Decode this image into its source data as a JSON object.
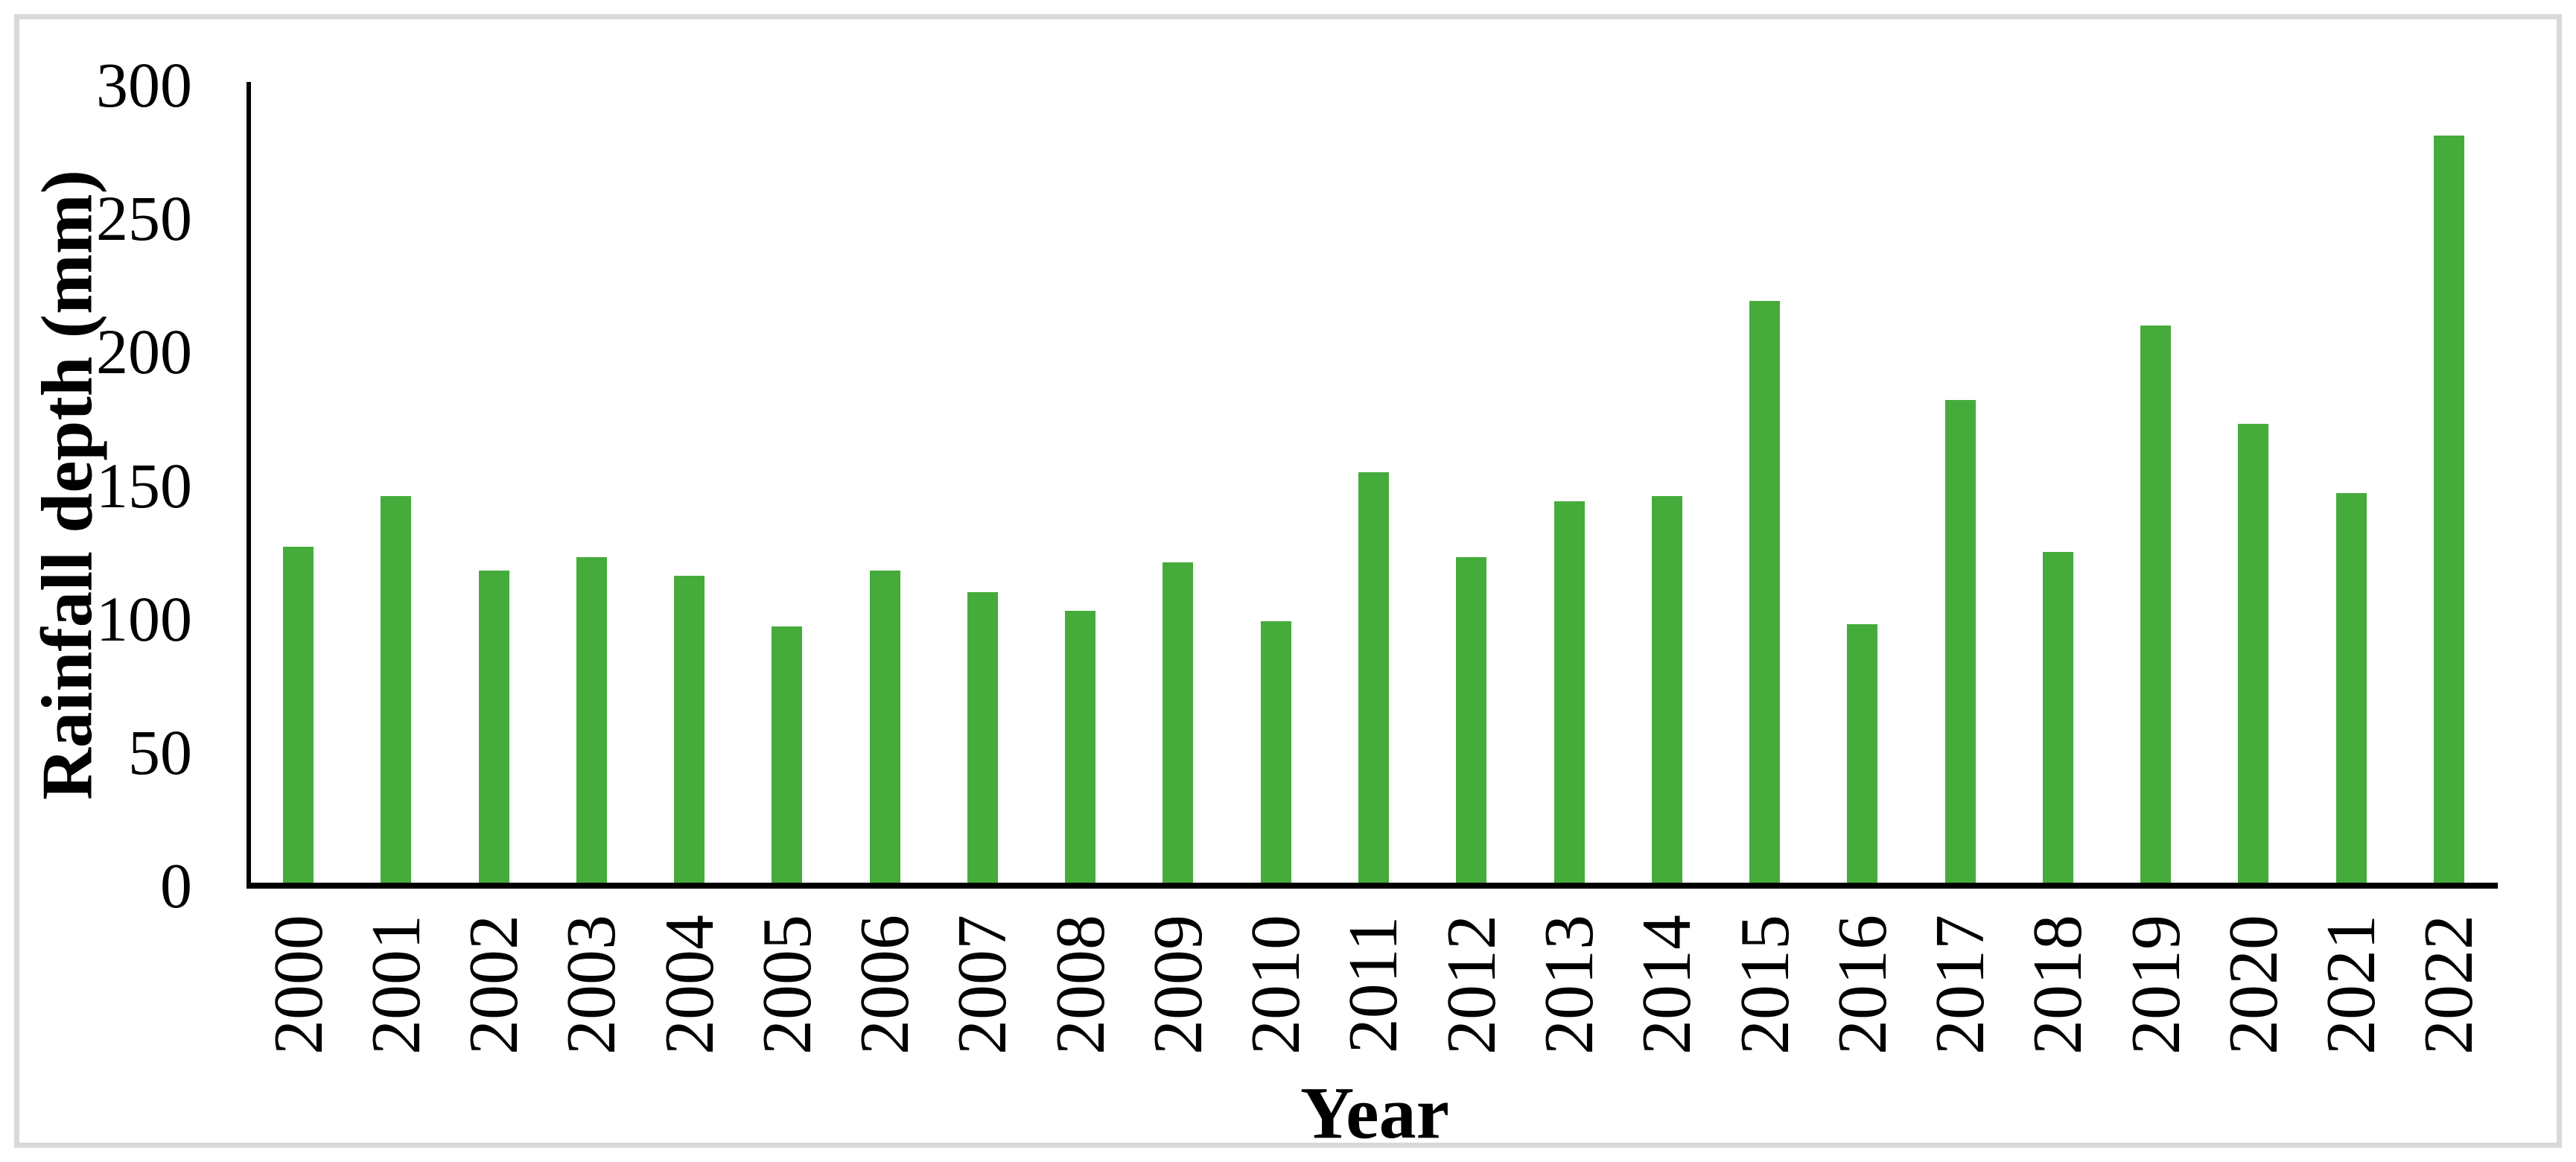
{
  "chart_data": {
    "type": "bar",
    "title": "",
    "xlabel": "Year",
    "ylabel": "Rainfall depth (mm)",
    "categories": [
      "2000",
      "2001",
      "2002",
      "2003",
      "2004",
      "2005",
      "2006",
      "2007",
      "2008",
      "2009",
      "2010",
      "2011",
      "2012",
      "2013",
      "2014",
      "2015",
      "2016",
      "2017",
      "2018",
      "2019",
      "2020",
      "2021",
      "2022"
    ],
    "values": [
      127,
      146,
      118,
      123,
      116,
      97,
      118,
      110,
      103,
      121,
      99,
      155,
      123,
      144,
      146,
      219,
      98,
      182,
      125,
      210,
      173,
      147,
      281
    ],
    "ylim": [
      0,
      300
    ],
    "yticks": [
      0,
      50,
      100,
      150,
      200,
      250,
      300
    ],
    "grid": false,
    "legend": "none",
    "bar_color": "#45AC3B",
    "axis_color": "#000000",
    "border_color": "#D9D9D9",
    "background_color": "#FFFFFF"
  }
}
